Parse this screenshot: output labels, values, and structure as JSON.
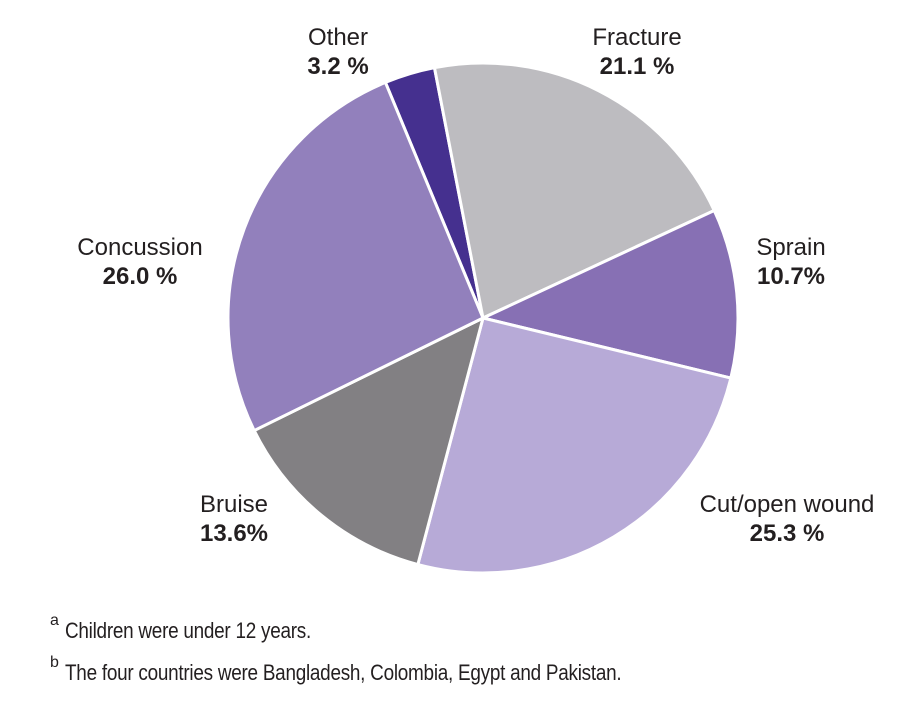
{
  "chart_data": {
    "type": "pie",
    "slices": [
      {
        "label": "Other",
        "value": 3.2,
        "value_label": "3.2 %",
        "color": "#45308f"
      },
      {
        "label": "Fracture",
        "value": 21.1,
        "value_label": "21.1 %",
        "color": "#bdbcc0"
      },
      {
        "label": "Sprain",
        "value": 10.7,
        "value_label": "10.7%",
        "color": "#8770b4"
      },
      {
        "label": "Cut/open wound",
        "value": 25.3,
        "value_label": "25.3 %",
        "color": "#b7aad7"
      },
      {
        "label": "Bruise",
        "value": 13.6,
        "value_label": "13.6%",
        "color": "#828083"
      },
      {
        "label": "Concussion",
        "value": 26.0,
        "value_label": "26.0 %",
        "color": "#9280bc"
      }
    ]
  },
  "footnotes": [
    {
      "marker": "a",
      "text": "Children were under 12 years."
    },
    {
      "marker": "b",
      "text": "The four countries were Bangladesh, Colombia, Egypt and Pakistan."
    }
  ]
}
